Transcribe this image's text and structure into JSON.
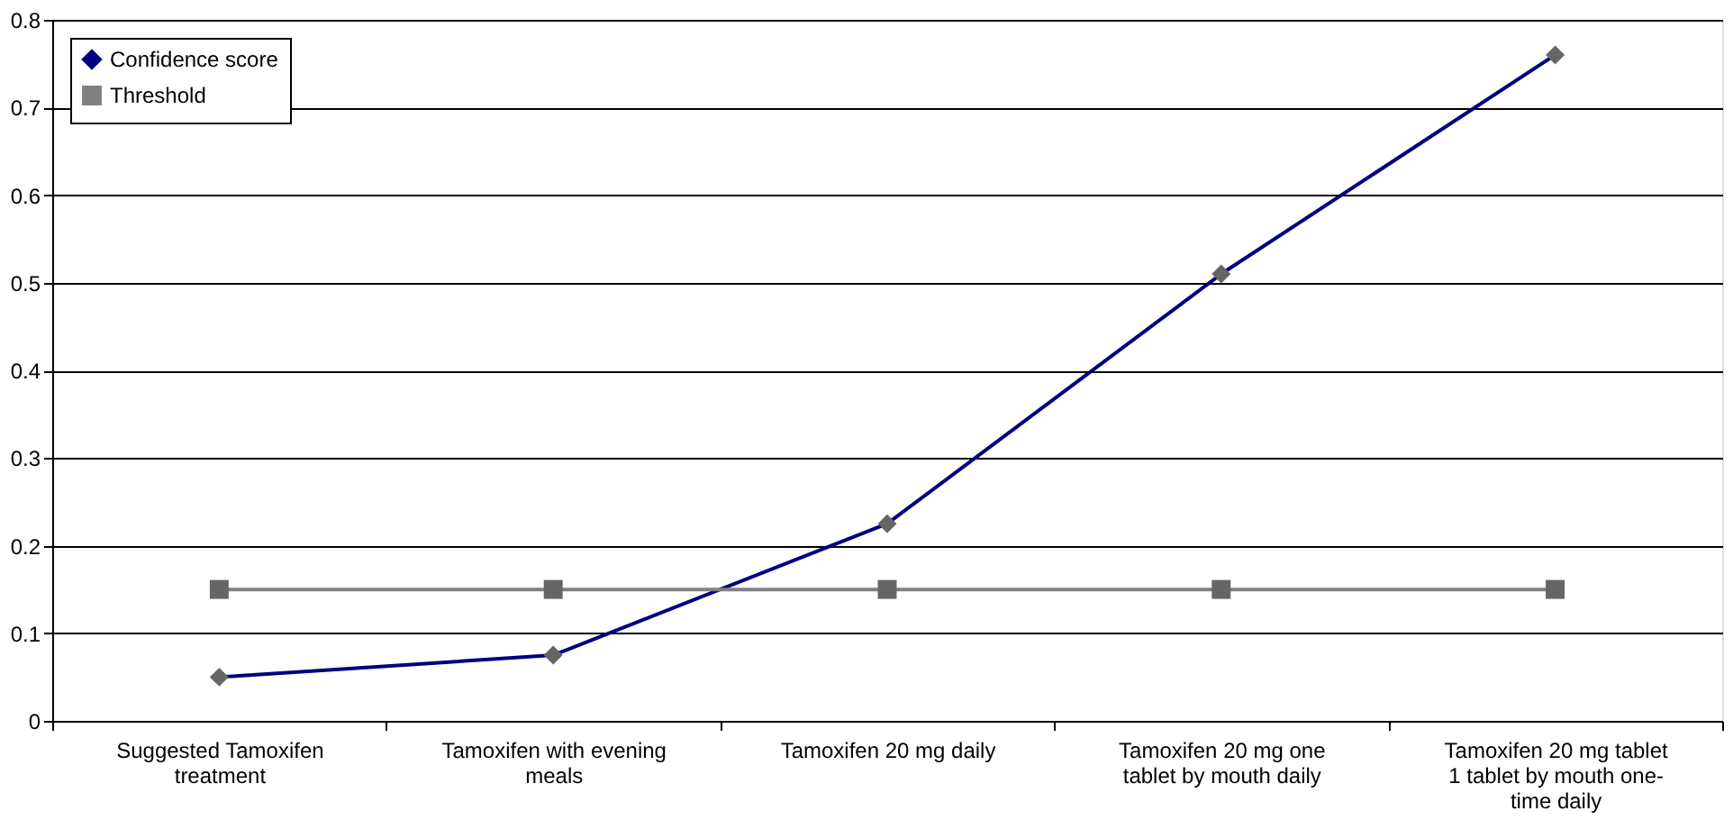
{
  "chart_data": {
    "type": "line",
    "categories": [
      "Suggested Tamoxifen treatment",
      "Tamoxifen with evening meals",
      "Tamoxifen 20 mg daily",
      "Tamoxifen 20 mg one tablet by mouth daily",
      "Tamoxifen 20 mg tablet 1 tablet by mouth one-time daily"
    ],
    "series": [
      {
        "name": "Confidence score",
        "color": "#000080",
        "marker": "diamond",
        "values": [
          0.05,
          0.075,
          0.225,
          0.51,
          0.76
        ]
      },
      {
        "name": "Threshold",
        "color": "#808080",
        "marker": "square",
        "values": [
          0.15,
          0.15,
          0.15,
          0.15,
          0.15
        ]
      }
    ],
    "ylim": [
      0,
      0.8
    ],
    "yticks": [
      0,
      0.1,
      0.2,
      0.3,
      0.4,
      0.5,
      0.6,
      0.7,
      0.8
    ],
    "grid": "y",
    "legend": "top left",
    "line_style": "solid"
  }
}
